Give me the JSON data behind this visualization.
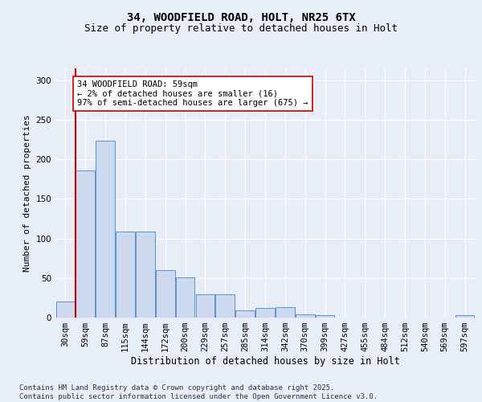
{
  "title1": "34, WOODFIELD ROAD, HOLT, NR25 6TX",
  "title2": "Size of property relative to detached houses in Holt",
  "xlabel": "Distribution of detached houses by size in Holt",
  "ylabel": "Number of detached properties",
  "categories": [
    "30sqm",
    "59sqm",
    "87sqm",
    "115sqm",
    "144sqm",
    "172sqm",
    "200sqm",
    "229sqm",
    "257sqm",
    "285sqm",
    "314sqm",
    "342sqm",
    "370sqm",
    "399sqm",
    "427sqm",
    "455sqm",
    "484sqm",
    "512sqm",
    "540sqm",
    "569sqm",
    "597sqm"
  ],
  "values": [
    20,
    186,
    224,
    109,
    109,
    60,
    51,
    29,
    29,
    9,
    12,
    13,
    4,
    3,
    0,
    0,
    0,
    0,
    0,
    0,
    3
  ],
  "bar_color": "#cdd9ee",
  "bar_edge_color": "#6090c8",
  "vline_x": 0.5,
  "vline_color": "#cc0000",
  "annotation_text": "34 WOODFIELD ROAD: 59sqm\n← 2% of detached houses are smaller (16)\n97% of semi-detached houses are larger (675) →",
  "annotation_box_color": "#ffffff",
  "annotation_box_edge": "#cc0000",
  "ylim": [
    0,
    315
  ],
  "yticks": [
    0,
    50,
    100,
    150,
    200,
    250,
    300
  ],
  "bg_color": "#e8eef8",
  "plot_bg_color": "#e8eef8",
  "footer": "Contains HM Land Registry data © Crown copyright and database right 2025.\nContains public sector information licensed under the Open Government Licence v3.0.",
  "title1_fontsize": 10,
  "title2_fontsize": 9,
  "xlabel_fontsize": 8.5,
  "ylabel_fontsize": 8,
  "tick_fontsize": 7.5,
  "annotation_fontsize": 7.5,
  "footer_fontsize": 6.5
}
